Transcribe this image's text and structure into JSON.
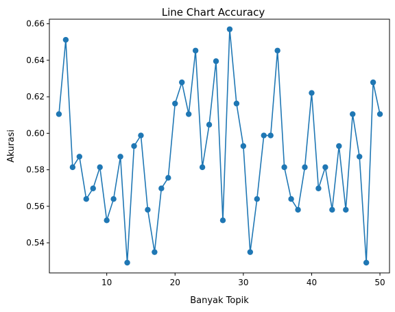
{
  "chart_data": {
    "type": "line",
    "title": "Line Chart Accuracy",
    "xlabel": "Banyak Topik",
    "ylabel": "Akurasi",
    "xlim": [
      1.6,
      51.4
    ],
    "ylim": [
      0.5235,
      0.6625
    ],
    "xticks": [
      10,
      20,
      30,
      40,
      50
    ],
    "yticks": [
      0.54,
      0.56,
      0.58,
      0.6,
      0.62,
      0.64,
      0.66
    ],
    "ytick_labels": [
      "0.54",
      "0.56",
      "0.58",
      "0.60",
      "0.62",
      "0.64",
      "0.66"
    ],
    "grid": false,
    "color": "#1f77b4",
    "marker": "circle",
    "x": [
      3,
      4,
      5,
      6,
      7,
      8,
      9,
      10,
      11,
      12,
      13,
      14,
      15,
      16,
      17,
      18,
      19,
      20,
      21,
      22,
      23,
      24,
      25,
      26,
      27,
      28,
      29,
      30,
      31,
      32,
      33,
      34,
      35,
      36,
      37,
      38,
      39,
      40,
      41,
      42,
      43,
      44,
      45,
      46,
      47,
      48,
      49,
      50
    ],
    "y": [
      0.6105,
      0.6512,
      0.5814,
      0.5872,
      0.564,
      0.5698,
      0.5814,
      0.5523,
      0.564,
      0.5872,
      0.5291,
      0.593,
      0.5988,
      0.5581,
      0.5349,
      0.5698,
      0.5756,
      0.6163,
      0.6279,
      0.6105,
      0.6453,
      0.5814,
      0.6047,
      0.6395,
      0.5523,
      0.657,
      0.6163,
      0.593,
      0.5349,
      0.564,
      0.5988,
      0.5988,
      0.6453,
      0.5814,
      0.564,
      0.5581,
      0.5814,
      0.6221,
      0.5698,
      0.5814,
      0.5581,
      0.593,
      0.5581,
      0.6105,
      0.5872,
      0.5291,
      0.6279,
      0.6105
    ]
  }
}
